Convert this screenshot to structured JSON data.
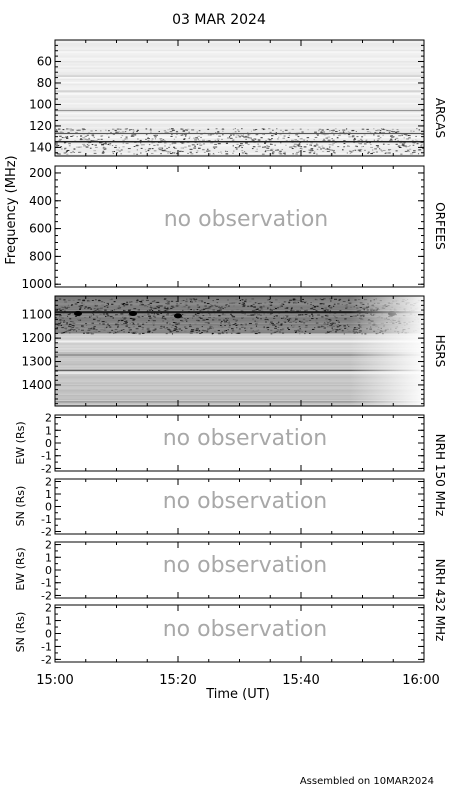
{
  "title": "03 MAR 2024",
  "footer": "Assembled on  10MAR2024",
  "ylabel_frequency": "Frequency (MHz)",
  "xlabel": "Time (UT)",
  "no_observation_text": "no observation",
  "colors": {
    "axis": "#000000",
    "placeholder_text": "#a8a8a8",
    "background": "#ffffff"
  },
  "panels": [
    {
      "id": "arcas",
      "right_label": "ARCAS",
      "yticks": [
        "60",
        "80",
        "100",
        "120",
        "140"
      ],
      "ylim": [
        40,
        148
      ],
      "observed": true
    },
    {
      "id": "orfees",
      "right_label": "ORFEES",
      "yticks": [
        "200",
        "400",
        "600",
        "800",
        "1000"
      ],
      "ylim": [
        150,
        1020
      ],
      "observed": false
    },
    {
      "id": "hsrs",
      "right_label": "HSRS",
      "yticks": [
        "1100",
        "1200",
        "1300",
        "1400"
      ],
      "ylim": [
        1020,
        1490
      ],
      "observed": true
    },
    {
      "id": "nrh150_ew",
      "left_label": "EW (Rs)",
      "yticks": [
        "2",
        "1",
        "0",
        "-1",
        "-2"
      ],
      "ylim": [
        -2.2,
        2.2
      ],
      "observed": false
    },
    {
      "id": "nrh150_sn",
      "left_label": "SN (Rs)",
      "yticks": [
        "2",
        "1",
        "0",
        "-1",
        "-2"
      ],
      "ylim": [
        -2.2,
        2.2
      ],
      "observed": false
    },
    {
      "id": "nrh432_ew",
      "left_label": "EW (Rs)",
      "yticks": [
        "2",
        "1",
        "0",
        "-1",
        "-2"
      ],
      "ylim": [
        -2.2,
        2.2
      ],
      "observed": false
    },
    {
      "id": "nrh432_sn",
      "left_label": "SN (Rs)",
      "yticks": [
        "2",
        "1",
        "0",
        "-1",
        "-2"
      ],
      "ylim": [
        -2.2,
        2.2
      ],
      "observed": false
    }
  ],
  "nrh_labels": [
    "NRH 150 MHz",
    "NRH 432 MHz"
  ],
  "chart_data": {
    "type": "heatmap",
    "title": "03 MAR 2024",
    "xlabel": "Time (UT)",
    "xticks": [
      "15:00",
      "15:20",
      "15:40",
      "16:00"
    ],
    "xlim": [
      "15:00",
      "16:00"
    ],
    "ylabel": "Frequency (MHz)",
    "spectrograms": [
      {
        "name": "ARCAS",
        "ylim": [
          40,
          148
        ],
        "observed": true
      },
      {
        "name": "ORFEES",
        "ylim": [
          150,
          1020
        ],
        "observed": false
      },
      {
        "name": "HSRS",
        "ylim": [
          1020,
          1490
        ],
        "observed": true
      }
    ],
    "nrh": [
      {
        "name": "NRH 150 MHz",
        "axes": [
          "EW (Rs)",
          "SN (Rs)"
        ],
        "ylim": [
          -2.2,
          2.2
        ],
        "observed": false
      },
      {
        "name": "NRH 432 MHz",
        "axes": [
          "EW (Rs)",
          "SN (Rs)"
        ],
        "ylim": [
          -2.2,
          2.2
        ],
        "observed": false
      }
    ]
  }
}
